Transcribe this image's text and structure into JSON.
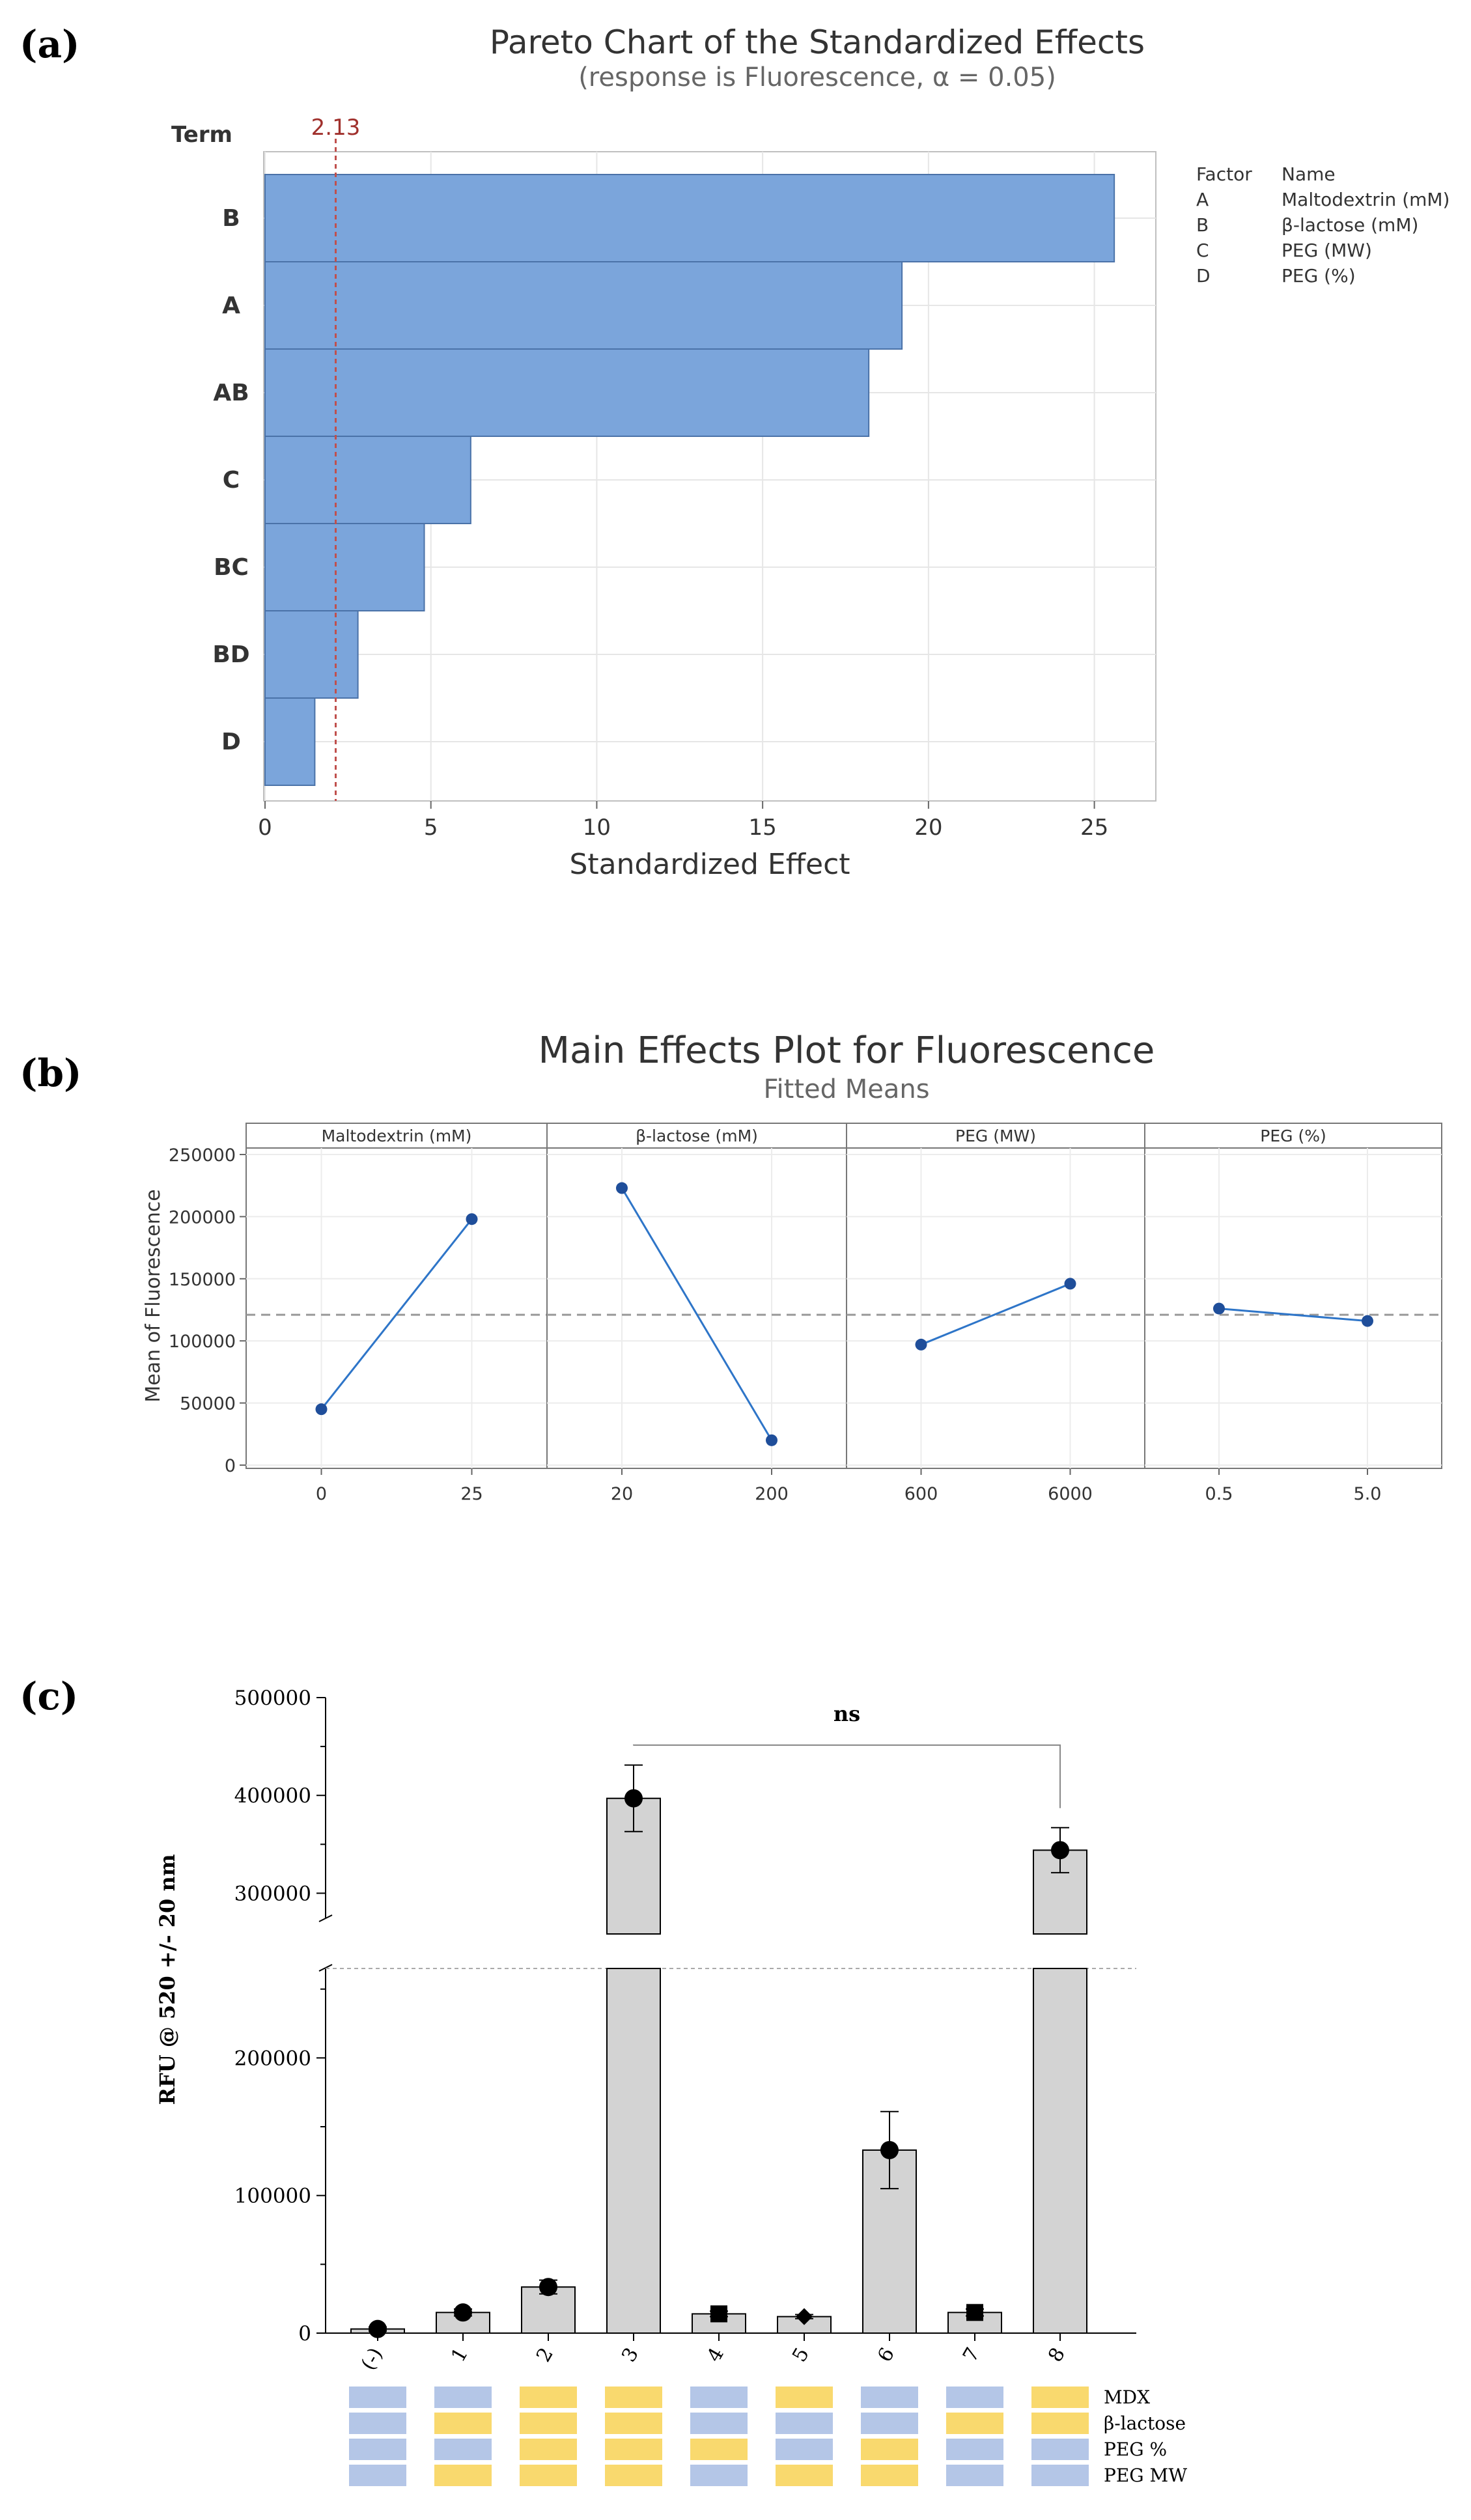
{
  "colors": {
    "pareto_bar": "#7ba5db",
    "pareto_edge": "#4a72a8",
    "ref_line": "#c0504d",
    "me_line": "#2e75c8",
    "me_point": "#1f4e9a",
    "bar_gray": "#d3d3d3",
    "grid_yellow": "#f9d96e",
    "grid_blue": "#b4c6e7"
  },
  "panel_labels": {
    "a": "(a)",
    "b": "(b)",
    "c": "(c)"
  },
  "chart_data": [
    {
      "type": "bar",
      "orientation": "horizontal",
      "title": "Pareto Chart of the Standardized Effects",
      "subtitle": "(response is Fluorescence, α = 0.05)",
      "ylabel": "Term",
      "xlabel": "Standardized Effect",
      "categories": [
        "B",
        "A",
        "AB",
        "C",
        "BC",
        "BD",
        "D"
      ],
      "values": [
        25.6,
        19.2,
        18.2,
        6.2,
        4.8,
        2.8,
        1.5
      ],
      "xlim": [
        0,
        26.5
      ],
      "xticks": [
        "0",
        "5",
        "10",
        "15",
        "20",
        "25"
      ],
      "reference_line": {
        "value": 2.13,
        "label": "2.13"
      },
      "legend": {
        "headers": [
          "Factor",
          "Name"
        ],
        "rows": [
          [
            "A",
            "Maltodextrin (mM)"
          ],
          [
            "B",
            "β-lactose (mM)"
          ],
          [
            "C",
            "PEG (MW)"
          ],
          [
            "D",
            "PEG (%)"
          ]
        ]
      }
    },
    {
      "type": "line",
      "title": "Main Effects Plot for Fluorescence",
      "subtitle": "Fitted Means",
      "ylabel": "Mean of Fluorescence",
      "ylim": [
        0,
        250000
      ],
      "yticks": [
        "0",
        "50000",
        "100000",
        "150000",
        "200000",
        "250000"
      ],
      "mean_line": 121000,
      "panels": [
        {
          "name": "Maltodextrin (mM)",
          "x": [
            "0",
            "25"
          ],
          "values": [
            45000,
            198000
          ]
        },
        {
          "name": "β-lactose (mM)",
          "x": [
            "20",
            "200"
          ],
          "values": [
            223000,
            20000
          ]
        },
        {
          "name": "PEG (MW)",
          "x": [
            "600",
            "6000"
          ],
          "values": [
            97000,
            146000
          ]
        },
        {
          "name": "PEG (%)",
          "x": [
            "0.5",
            "5.0"
          ],
          "values": [
            126000,
            116000
          ]
        }
      ]
    },
    {
      "type": "bar",
      "ylabel": "RFU @ 520 +/- 20 nm",
      "categories": [
        "(-)",
        "1",
        "2",
        "3",
        "4",
        "5",
        "6",
        "7",
        "8"
      ],
      "values": [
        3000,
        15000,
        33500,
        397000,
        14000,
        12000,
        133000,
        15000,
        344000
      ],
      "errors": [
        1500,
        2500,
        5000,
        34000,
        2000,
        1500,
        28000,
        2500,
        23000
      ],
      "markers": [
        "circle",
        "circle",
        "circle",
        "circle",
        "square",
        "diamond",
        "circle",
        "square",
        "circle"
      ],
      "axis_break": {
        "lower_max": 265000,
        "upper_min": 275000
      },
      "ylim": [
        0,
        500000
      ],
      "yticks_lower": [
        "0",
        "100000",
        "200000"
      ],
      "yticks_upper": [
        "300000",
        "400000",
        "500000"
      ],
      "significance": {
        "from": "3",
        "to": "8",
        "label": "ns"
      },
      "factor_grid": {
        "rows": [
          "MDX",
          "β-lactose",
          "PEG %",
          "PEG MW"
        ],
        "levels": [
          [
            0,
            0,
            1,
            1,
            0,
            1,
            0,
            0,
            1
          ],
          [
            0,
            1,
            1,
            1,
            0,
            0,
            0,
            1,
            1
          ],
          [
            0,
            0,
            1,
            1,
            1,
            0,
            1,
            0,
            0
          ],
          [
            0,
            1,
            1,
            1,
            0,
            1,
            1,
            0,
            0
          ]
        ]
      }
    }
  ]
}
